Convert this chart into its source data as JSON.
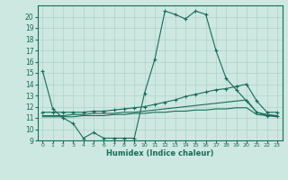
{
  "xlabel": "Humidex (Indice chaleur)",
  "ylabel": "",
  "bg_color": "#cce8e0",
  "line_color": "#1a6b5a",
  "grid_color": "#aaccC4",
  "xlim": [
    -0.5,
    23.5
  ],
  "ylim": [
    9,
    21
  ],
  "xticks": [
    0,
    1,
    2,
    3,
    4,
    5,
    6,
    7,
    8,
    9,
    10,
    11,
    12,
    13,
    14,
    15,
    16,
    17,
    18,
    19,
    20,
    21,
    22,
    23
  ],
  "yticks": [
    9,
    10,
    11,
    12,
    13,
    14,
    15,
    16,
    17,
    18,
    19,
    20
  ],
  "series1_x": [
    0,
    1,
    2,
    3,
    4,
    5,
    6,
    7,
    8,
    9,
    10,
    11,
    12,
    13,
    14,
    15,
    16,
    17,
    18,
    19,
    20,
    21,
    22,
    23
  ],
  "series1_y": [
    15.2,
    11.8,
    11.0,
    10.5,
    9.2,
    9.7,
    9.2,
    9.2,
    9.2,
    9.2,
    13.2,
    16.2,
    20.5,
    20.2,
    19.8,
    20.5,
    20.2,
    17.0,
    14.5,
    13.5,
    12.5,
    11.5,
    11.2,
    11.2
  ],
  "series2_x": [
    0,
    1,
    2,
    3,
    4,
    5,
    6,
    7,
    8,
    9,
    10,
    11,
    12,
    13,
    14,
    15,
    16,
    17,
    18,
    19,
    20,
    21,
    22,
    23
  ],
  "series2_y": [
    11.5,
    11.5,
    11.5,
    11.5,
    11.5,
    11.6,
    11.6,
    11.7,
    11.8,
    11.9,
    12.0,
    12.2,
    12.4,
    12.6,
    12.9,
    13.1,
    13.3,
    13.5,
    13.6,
    13.8,
    14.0,
    12.5,
    11.5,
    11.5
  ],
  "series3_x": [
    0,
    1,
    2,
    3,
    4,
    5,
    6,
    7,
    8,
    9,
    10,
    11,
    12,
    13,
    14,
    15,
    16,
    17,
    18,
    19,
    20,
    21,
    22,
    23
  ],
  "series3_y": [
    11.2,
    11.2,
    11.2,
    11.3,
    11.3,
    11.4,
    11.4,
    11.4,
    11.5,
    11.5,
    11.6,
    11.7,
    11.8,
    11.9,
    12.0,
    12.1,
    12.2,
    12.3,
    12.4,
    12.5,
    12.6,
    11.5,
    11.3,
    11.2
  ],
  "series4_x": [
    0,
    1,
    2,
    3,
    4,
    5,
    6,
    7,
    8,
    9,
    10,
    11,
    12,
    13,
    14,
    15,
    16,
    17,
    18,
    19,
    20,
    21,
    22,
    23
  ],
  "series4_y": [
    11.1,
    11.1,
    11.1,
    11.1,
    11.2,
    11.2,
    11.2,
    11.3,
    11.3,
    11.4,
    11.4,
    11.5,
    11.5,
    11.6,
    11.6,
    11.7,
    11.7,
    11.8,
    11.8,
    11.9,
    11.9,
    11.3,
    11.2,
    11.1
  ]
}
